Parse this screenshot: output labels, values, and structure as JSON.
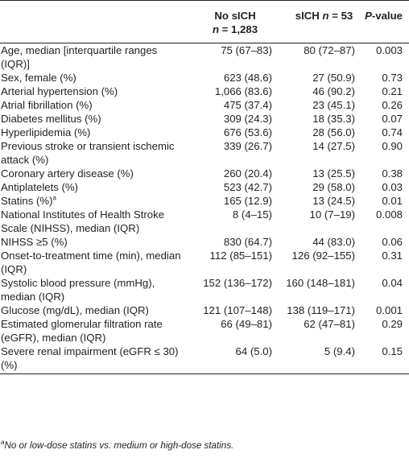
{
  "table": {
    "headers": {
      "label": "",
      "no_sich": {
        "line1": "No sICH",
        "n_label": "n",
        "n_value": "= 1,283"
      },
      "sich": {
        "line1": "sICH",
        "n_label": "n",
        "n_value": "= 53"
      },
      "p_value": {
        "italic": "P",
        "rest": "-value"
      }
    },
    "rows": [
      {
        "label": "Age, median [interquartile ranges (IQR)]",
        "no_sich": "75 (67–83)",
        "sich": "80 (72–87)",
        "p": "0.003"
      },
      {
        "label": "Sex, female (%)",
        "no_sich": "623 (48.6)",
        "sich": "27 (50.9)",
        "p": "0.73"
      },
      {
        "label": "Arterial hypertension (%)",
        "no_sich": "1,066 (83.6)",
        "sich": "46 (90.2)",
        "p": "0.21"
      },
      {
        "label": "Atrial fibrillation (%)",
        "no_sich": "475 (37.4)",
        "sich": "23 (45.1)",
        "p": "0.26"
      },
      {
        "label": "Diabetes mellitus (%)",
        "no_sich": "309 (24.3)",
        "sich": "18 (35.3)",
        "p": "0.07"
      },
      {
        "label": "Hyperlipidemia (%)",
        "no_sich": "676 (53.6)",
        "sich": "28 (56.0)",
        "p": "0.74"
      },
      {
        "label": "Previous stroke or transient ischemic attack (%)",
        "no_sich": "339 (26.7)",
        "sich": "14 (27.5)",
        "p": "0.90"
      },
      {
        "label": "Coronary artery disease (%)",
        "no_sich": "260 (20.4)",
        "sich": "13 (25.5)",
        "p": "0.38"
      },
      {
        "label": "Antiplatelets (%)",
        "no_sich": "523 (42.7)",
        "sich": "29 (58.0)",
        "p": "0.03"
      },
      {
        "label": "Statins (%)",
        "sup": "a",
        "no_sich": "165 (12.9)",
        "sich": "13 (24.5)",
        "p": "0.01"
      },
      {
        "label": "National Institutes of Health Stroke Scale (NIHSS), median (IQR)",
        "no_sich": "8 (4–15)",
        "sich": "10 (7–19)",
        "p": "0.008"
      },
      {
        "label": "NIHSS ≥5 (%)",
        "no_sich": "830 (64.7)",
        "sich": "44 (83.0)",
        "p": "0.06"
      },
      {
        "label": "Onset-to-treatment time (min), median (IQR)",
        "no_sich": "112 (85–151)",
        "sich": "126 (92–155)",
        "p": "0.31"
      },
      {
        "label": "Systolic blood pressure (mmHg), median (IQR)",
        "no_sich": "152 (136–172)",
        "sich": "160 (148–181)",
        "p": "0.04"
      },
      {
        "label": "Glucose (mg/dL), median (IQR)",
        "no_sich": "121 (107–148)",
        "sich": "138 (119–171)",
        "p": "0.001"
      },
      {
        "label": "Estimated glomerular filtration rate (eGFR), median (IQR)",
        "no_sich": "66 (49–81)",
        "sich": "62 (47–81)",
        "p": "0.29"
      },
      {
        "label": "Severe renal impairment (eGFR ≤ 30) (%)",
        "no_sich": "64 (5.0)",
        "sich": "5 (9.4)",
        "p": "0.15"
      }
    ]
  },
  "footnote": {
    "marker": "a",
    "text": "No or low-dose statins vs. medium or high-dose statins."
  }
}
